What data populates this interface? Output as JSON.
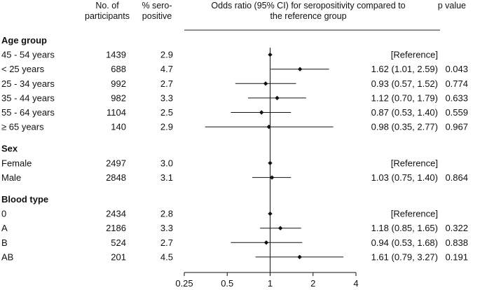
{
  "headers": {
    "participants": [
      "No. of",
      "participants"
    ],
    "seropositive": [
      "% sero-",
      "positive"
    ],
    "odds_ratio": [
      "Odds ratio (95% CI) for seropositivity compared to",
      "the reference group"
    ],
    "p_value": "p value"
  },
  "chart_data": {
    "type": "forest",
    "xscale": "log2",
    "xlim": [
      0.25,
      4
    ],
    "reference_line": 1,
    "xticks": [
      {
        "value": 0.25,
        "label": "0.25"
      },
      {
        "value": 0.5,
        "label": "0.5"
      },
      {
        "value": 1,
        "label": "1"
      },
      {
        "value": 2,
        "label": "2"
      },
      {
        "value": 4,
        "label": "4"
      }
    ],
    "groups": [
      {
        "name": "Age group",
        "rows": [
          {
            "label": "45 - 54 years",
            "n": "1439",
            "pct": "2.9",
            "or": 1,
            "lo": 1,
            "hi": 1,
            "or_text": "[Reference]",
            "p": ""
          },
          {
            "label": "< 25 years",
            "n": "688",
            "pct": "4.7",
            "or": 1.62,
            "lo": 1.01,
            "hi": 2.59,
            "or_text": "1.62 (1.01, 2.59)",
            "p": "0.043"
          },
          {
            "label": "25 - 34 years",
            "n": "992",
            "pct": "2.7",
            "or": 0.93,
            "lo": 0.57,
            "hi": 1.52,
            "or_text": "0.93 (0.57, 1.52)",
            "p": "0.774"
          },
          {
            "label": "35 - 44 years",
            "n": "982",
            "pct": "3.3",
            "or": 1.12,
            "lo": 0.7,
            "hi": 1.79,
            "or_text": "1.12 (0.70, 1.79)",
            "p": "0.633"
          },
          {
            "label": "55 - 64 years",
            "n": "1104",
            "pct": "2.5",
            "or": 0.87,
            "lo": 0.53,
            "hi": 1.4,
            "or_text": "0.87 (0.53, 1.40)",
            "p": "0.559"
          },
          {
            "label": "≥ 65 years",
            "n": "140",
            "pct": "2.9",
            "or": 0.98,
            "lo": 0.35,
            "hi": 2.77,
            "or_text": "0.98 (0.35, 2.77)",
            "p": "0.967"
          }
        ]
      },
      {
        "name": "Sex",
        "rows": [
          {
            "label": "Female",
            "n": "2497",
            "pct": "3.0",
            "or": 1,
            "lo": 1,
            "hi": 1,
            "or_text": "[Reference]",
            "p": ""
          },
          {
            "label": "Male",
            "n": "2848",
            "pct": "3.1",
            "or": 1.03,
            "lo": 0.75,
            "hi": 1.4,
            "or_text": "1.03 (0.75, 1.40)",
            "p": "0.864"
          }
        ]
      },
      {
        "name": "Blood type",
        "rows": [
          {
            "label": "0",
            "n": "2434",
            "pct": "2.8",
            "or": 1,
            "lo": 1,
            "hi": 1,
            "or_text": "[Reference]",
            "p": ""
          },
          {
            "label": "A",
            "n": "2186",
            "pct": "3.3",
            "or": 1.18,
            "lo": 0.85,
            "hi": 1.65,
            "or_text": "1.18 (0.85, 1.65)",
            "p": "0.322"
          },
          {
            "label": "B",
            "n": "524",
            "pct": "2.7",
            "or": 0.94,
            "lo": 0.53,
            "hi": 1.68,
            "or_text": "0.94 (0.53, 1.68)",
            "p": "0.838"
          },
          {
            "label": "AB",
            "n": "201",
            "pct": "4.5",
            "or": 1.61,
            "lo": 0.79,
            "hi": 3.27,
            "or_text": "1.61 (0.79, 3.27)",
            "p": "0.191"
          }
        ]
      }
    ]
  }
}
